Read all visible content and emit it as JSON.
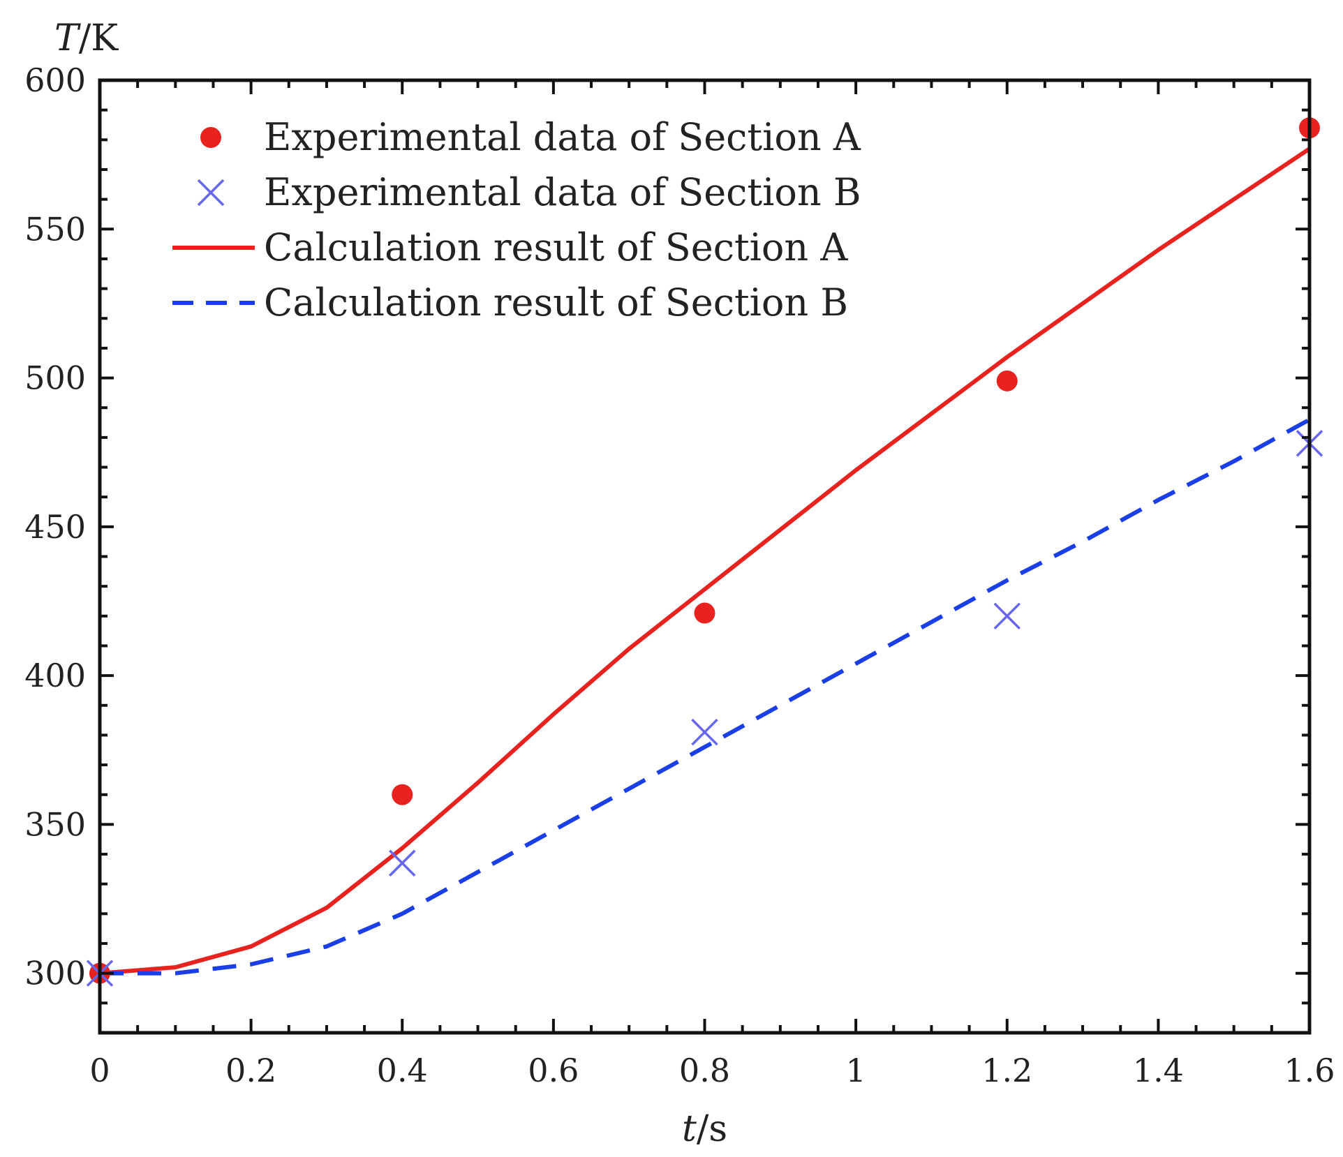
{
  "chart_data": {
    "type": "line",
    "title": "",
    "xlabel": "t/s",
    "ylabel": "T/K",
    "xlim": [
      0,
      1.6
    ],
    "ylim": [
      280,
      600
    ],
    "x_ticks": [
      0,
      0.2,
      0.4,
      0.6,
      0.8,
      1,
      1.2,
      1.4,
      1.6
    ],
    "x_tick_labels": [
      "0",
      "0.2",
      "0.4",
      "0.6",
      "0.8",
      "1",
      "1.2",
      "1.4",
      "1.6"
    ],
    "y_ticks": [
      300,
      350,
      400,
      450,
      500,
      550,
      600
    ],
    "y_tick_labels": [
      "300",
      "350",
      "400",
      "450",
      "500",
      "550",
      "600"
    ],
    "grid": false,
    "legend_position": "top-left",
    "series": [
      {
        "name": "Experimental data of Section A",
        "kind": "scatter",
        "marker": "circle",
        "color": "#e8231f",
        "x": [
          0,
          0.4,
          0.8,
          1.2,
          1.6
        ],
        "y": [
          300,
          360,
          421,
          499,
          584
        ]
      },
      {
        "name": "Experimental data of Section B",
        "kind": "scatter",
        "marker": "cross",
        "color": "#6666ee",
        "x": [
          0,
          0.4,
          0.8,
          1.2,
          1.6
        ],
        "y": [
          300,
          337,
          381,
          420,
          478
        ]
      },
      {
        "name": "Calculation result of Section A",
        "kind": "line",
        "dash": "solid",
        "color": "#e8231f",
        "x": [
          0,
          0.1,
          0.2,
          0.3,
          0.4,
          0.5,
          0.6,
          0.7,
          0.8,
          0.9,
          1.0,
          1.1,
          1.2,
          1.3,
          1.4,
          1.5,
          1.6
        ],
        "y": [
          300,
          302,
          309,
          322,
          342,
          364,
          387,
          409,
          429,
          449,
          469,
          488,
          507,
          525,
          543,
          560,
          577
        ]
      },
      {
        "name": "Calculation result of Section B",
        "kind": "line",
        "dash": "dashed",
        "color": "#1a3fe8",
        "x": [
          0,
          0.1,
          0.2,
          0.3,
          0.4,
          0.5,
          0.6,
          0.7,
          0.8,
          0.9,
          1.0,
          1.1,
          1.2,
          1.3,
          1.4,
          1.5,
          1.6
        ],
        "y": [
          300,
          300,
          303,
          309,
          320,
          334,
          348,
          362,
          376,
          390,
          404,
          418,
          432,
          445,
          459,
          472,
          486
        ]
      }
    ]
  }
}
